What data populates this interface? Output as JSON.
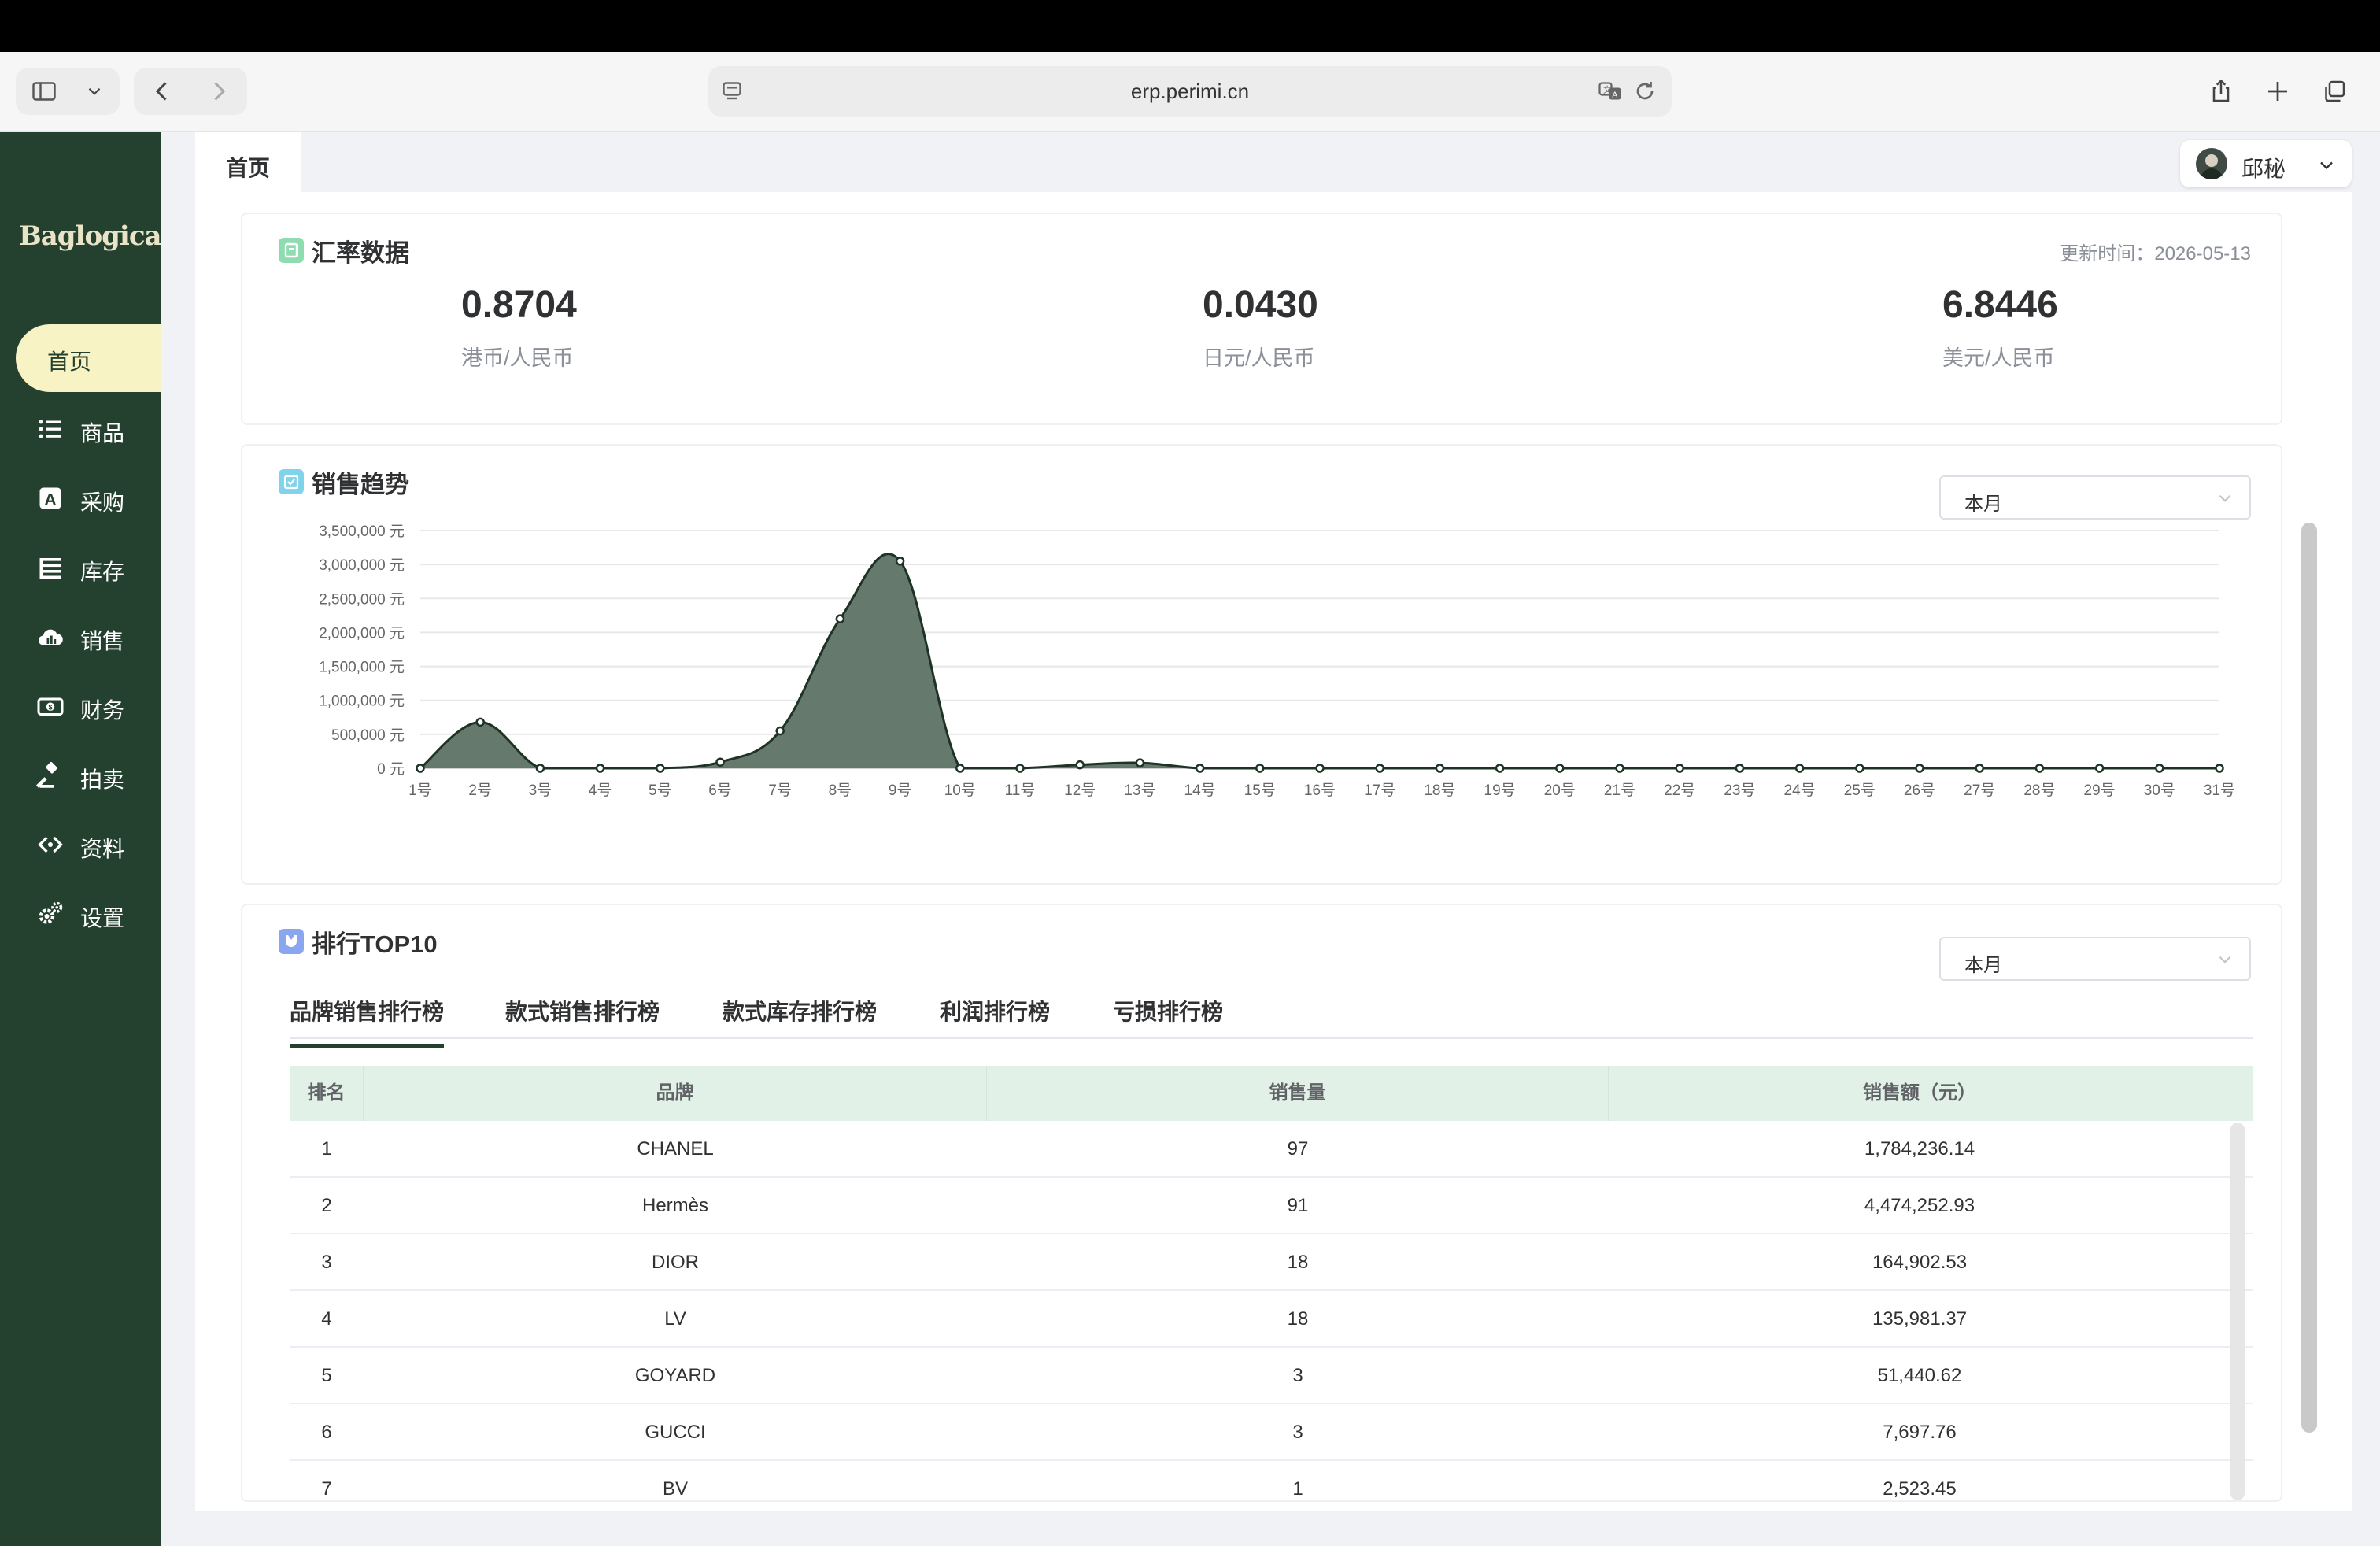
{
  "browser": {
    "url": "erp.perimi.cn"
  },
  "app": {
    "logo": "Baglogical",
    "page_tab": "首页",
    "user": {
      "name": "邱秘"
    }
  },
  "sidebar": {
    "items": [
      {
        "label": "首页",
        "icon": "home",
        "active": true
      },
      {
        "label": "商品",
        "icon": "list-icon"
      },
      {
        "label": "采购",
        "icon": "purchase-a-icon"
      },
      {
        "label": "库存",
        "icon": "inventory-icon"
      },
      {
        "label": "销售",
        "icon": "cloud-chart-icon"
      },
      {
        "label": "财务",
        "icon": "money-icon"
      },
      {
        "label": "拍卖",
        "icon": "gavel-icon"
      },
      {
        "label": "资料",
        "icon": "data-icon"
      },
      {
        "label": "设置",
        "icon": "gears-icon"
      }
    ]
  },
  "exchange": {
    "title": "汇率数据",
    "update_time": "更新时间：2026-05-13",
    "rates": [
      {
        "value": "0.8704",
        "label": "港币/人民币"
      },
      {
        "value": "0.0430",
        "label": "日元/人民币"
      },
      {
        "value": "6.8446",
        "label": "美元/人民币"
      }
    ]
  },
  "sales_trend": {
    "title": "销售趋势",
    "period": "本月"
  },
  "chart_data": {
    "type": "area",
    "x": [
      "1号",
      "2号",
      "3号",
      "4号",
      "5号",
      "6号",
      "7号",
      "8号",
      "9号",
      "10号",
      "11号",
      "12号",
      "13号",
      "14号",
      "15号",
      "16号",
      "17号",
      "18号",
      "19号",
      "20号",
      "21号",
      "22号",
      "23号",
      "24号",
      "25号",
      "26号",
      "27号",
      "28号",
      "29号",
      "30号",
      "31号"
    ],
    "values": [
      0,
      680000,
      0,
      0,
      0,
      90000,
      550000,
      2200000,
      3050000,
      0,
      0,
      50000,
      80000,
      0,
      0,
      0,
      0,
      0,
      0,
      0,
      0,
      0,
      0,
      0,
      0,
      0,
      0,
      0,
      0,
      0,
      0
    ],
    "y_ticks": [
      "0 元",
      "500,000 元",
      "1,000,000 元",
      "1,500,000 元",
      "2,000,000 元",
      "2,500,000 元",
      "3,000,000 元",
      "3,500,000 元"
    ],
    "ylim": [
      0,
      3500000
    ],
    "grid": true,
    "color": "#5e7265"
  },
  "ranking": {
    "title": "排行TOP10",
    "period": "本月",
    "tabs": [
      "品牌销售排行榜",
      "款式销售排行榜",
      "款式库存排行榜",
      "利润排行榜",
      "亏损排行榜"
    ],
    "active_tab": 0,
    "columns": [
      "排名",
      "品牌",
      "销售量",
      "销售额（元）"
    ],
    "rows": [
      [
        "1",
        "CHANEL",
        "97",
        "1,784,236.14"
      ],
      [
        "2",
        "Hermès",
        "91",
        "4,474,252.93"
      ],
      [
        "3",
        "DIOR",
        "18",
        "164,902.53"
      ],
      [
        "4",
        "LV",
        "18",
        "135,981.37"
      ],
      [
        "5",
        "GOYARD",
        "3",
        "51,440.62"
      ],
      [
        "6",
        "GUCCI",
        "3",
        "7,697.76"
      ],
      [
        "7",
        "BV",
        "1",
        "2,523.45"
      ]
    ]
  },
  "colors": {
    "sidebar": "#24402f",
    "active_nav": "#f7f3c5",
    "table_header": "#e2f1e8"
  }
}
